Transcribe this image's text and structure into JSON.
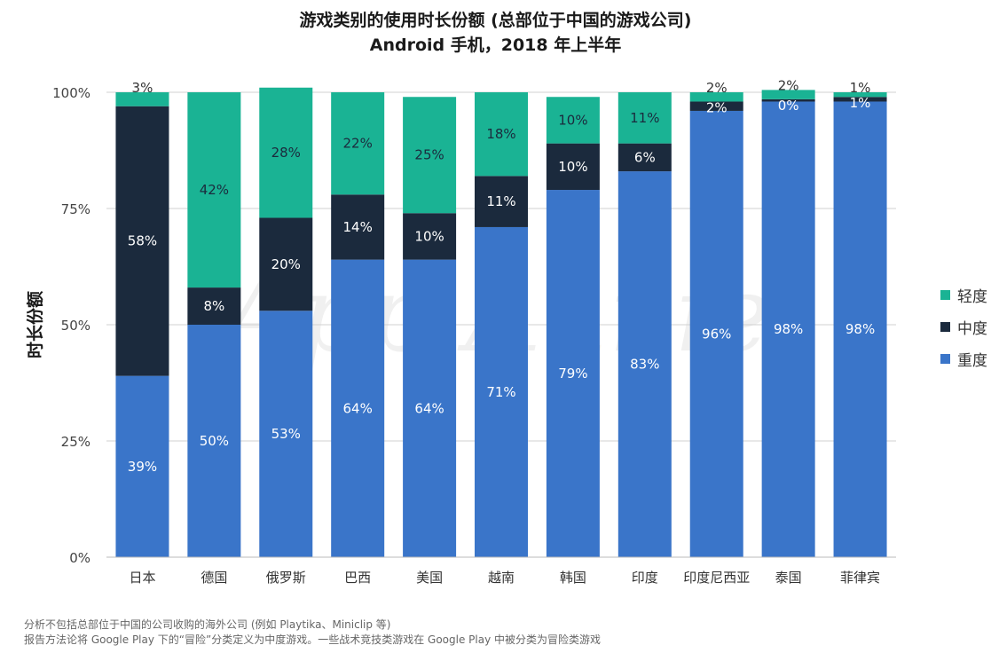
{
  "chart_data": {
    "type": "bar",
    "stacked": true,
    "title": "游戏类别的使用时长份额 (总部位于中国的游戏公司)",
    "subtitle": "Android 手机，2018 年上半年",
    "ylabel": "时长份额",
    "xlabel": "",
    "ylim": [
      0,
      100
    ],
    "yticks": [
      "0%",
      "25%",
      "50%",
      "75%",
      "100%"
    ],
    "ytick_values": [
      0,
      25,
      50,
      75,
      100
    ],
    "grid": true,
    "legend_position": "right",
    "categories": [
      "日本",
      "德国",
      "俄罗斯",
      "巴西",
      "美国",
      "越南",
      "韩国",
      "印度",
      "印度尼西亚",
      "泰国",
      "菲律宾"
    ],
    "series": [
      {
        "name": "重度",
        "color": "#3a75c9",
        "values": [
          39,
          50,
          53,
          64,
          64,
          71,
          79,
          83,
          96,
          98,
          98
        ],
        "labels": [
          "39%",
          "50%",
          "53%",
          "64%",
          "64%",
          "71%",
          "79%",
          "83%",
          "96%",
          "98%",
          "98%"
        ]
      },
      {
        "name": "中度",
        "color": "#1b2a3d",
        "values": [
          58,
          8,
          20,
          14,
          10,
          11,
          10,
          6,
          2,
          0.5,
          1
        ],
        "labels": [
          "58%",
          "8%",
          "20%",
          "14%",
          "10%",
          "11%",
          "10%",
          "6%",
          "2%",
          "0%",
          "1%"
        ]
      },
      {
        "name": "轻度",
        "color": "#1ab394",
        "values": [
          3,
          42,
          28,
          22,
          25,
          18,
          10,
          11,
          2,
          2,
          1
        ],
        "labels": [
          "3%",
          "42%",
          "28%",
          "22%",
          "25%",
          "18%",
          "10%",
          "11%",
          "2%",
          "2%",
          "1%"
        ]
      }
    ]
  },
  "footnotes": [
    "分析不包括总部位于中国的公司收购的海外公司 (例如 Playtika、Miniclip 等)",
    "报告方法论将 Google Play 下的“冒险”分类定义为中度游戏。一些战术竞技类游戏在 Google Play 中被分类为冒险类游戏"
  ],
  "watermark": "App Annie"
}
